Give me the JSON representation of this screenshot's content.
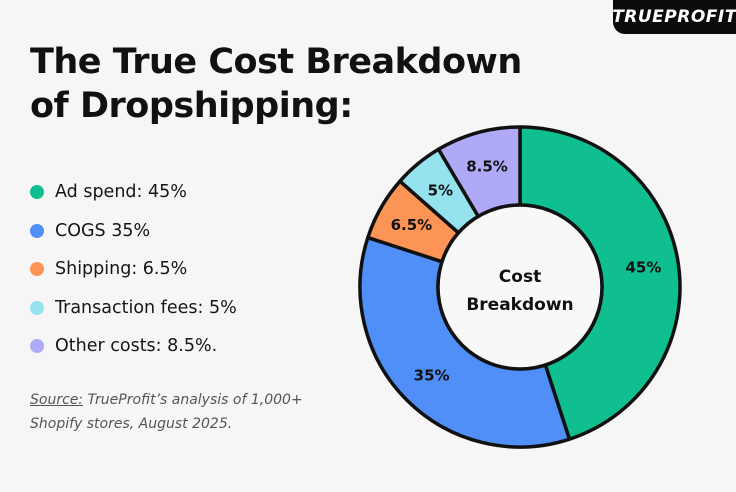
{
  "logo": "TRUEPROFIT",
  "title_line1": "The True Cost Breakdown",
  "title_line2": "of Dropshipping:",
  "legend": [
    {
      "label": "Ad spend: 45%",
      "color": "#0fbf8f"
    },
    {
      "label": "COGS 35%",
      "color": "#4f8ff7"
    },
    {
      "label": "Shipping: 6.5%",
      "color": "#fb9455"
    },
    {
      "label": "Transaction fees: 5%",
      "color": "#93e2ee"
    },
    {
      "label": "Other costs: 8.5%.",
      "color": "#aeaaf8"
    }
  ],
  "source": {
    "prefix": "Source:",
    "line1": " TrueProfit’s analysis of 1,000+",
    "line2": "Shopify stores, August 2025."
  },
  "chart_data": {
    "type": "pie",
    "donut": true,
    "center_label": [
      "Cost",
      "Breakdown"
    ],
    "categories": [
      "Ad spend",
      "COGS",
      "Shipping",
      "Transaction fees",
      "Other costs"
    ],
    "values": [
      45,
      35,
      6.5,
      5,
      8.5
    ],
    "data_labels": [
      "45%",
      "35%",
      "6.5%",
      "5%",
      "8.5%"
    ],
    "colors": [
      "#0fbf8f",
      "#4f8ff7",
      "#fb9455",
      "#93e2ee",
      "#aeaaf8"
    ],
    "start": "top",
    "direction": "clockwise"
  }
}
